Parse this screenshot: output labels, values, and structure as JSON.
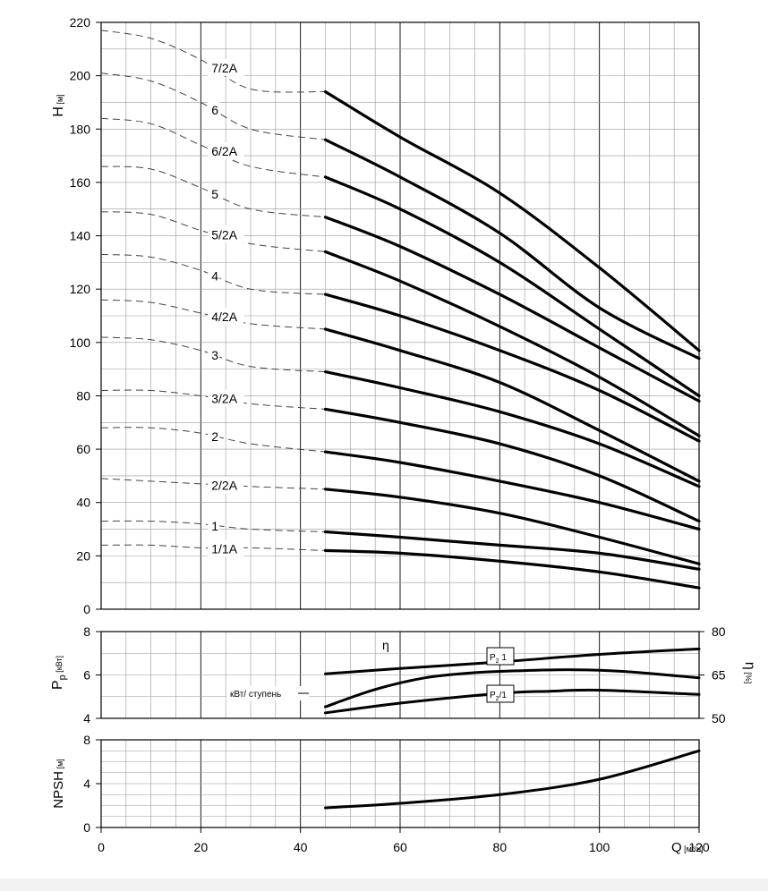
{
  "chart_data": [
    {
      "type": "line",
      "panel": "head",
      "ylabel_main": "H",
      "ylabel_unit": "[м]",
      "ylim": [
        0,
        220
      ],
      "yticks": [
        0,
        20,
        40,
        60,
        80,
        100,
        120,
        140,
        160,
        180,
        200,
        220
      ],
      "xlim": [
        0,
        120
      ],
      "grid": true,
      "series": [
        {
          "name": "7/2A",
          "dashed": {
            "x": [
              0,
              10,
              20,
              30,
              45
            ],
            "y": [
              217,
              214,
              206,
              195,
              194
            ]
          },
          "solid": {
            "x": [
              45,
              60,
              80,
              100,
              120
            ],
            "y": [
              194,
              177,
              156,
              128,
              97
            ]
          }
        },
        {
          "name": "6",
          "dashed": {
            "x": [
              0,
              10,
              20,
              30,
              45
            ],
            "y": [
              201,
              198,
              190,
              180,
              176
            ]
          },
          "solid": {
            "x": [
              45,
              60,
              80,
              100,
              120
            ],
            "y": [
              176,
              162,
              141,
              113,
              94
            ]
          }
        },
        {
          "name": "6/2A",
          "dashed": {
            "x": [
              0,
              10,
              20,
              30,
              45
            ],
            "y": [
              184,
              182,
              174,
              166,
              162
            ]
          },
          "solid": {
            "x": [
              45,
              60,
              80,
              100,
              120
            ],
            "y": [
              162,
              150,
              130,
              105,
              80
            ]
          }
        },
        {
          "name": "5",
          "dashed": {
            "x": [
              0,
              10,
              20,
              30,
              45
            ],
            "y": [
              166,
              165,
              158,
              150,
              147
            ]
          },
          "solid": {
            "x": [
              45,
              60,
              80,
              100,
              120
            ],
            "y": [
              147,
              136,
              118,
              98,
              78
            ]
          }
        },
        {
          "name": "5/2A",
          "dashed": {
            "x": [
              0,
              10,
              20,
              30,
              45
            ],
            "y": [
              149,
              148,
              142,
              137,
              134
            ]
          },
          "solid": {
            "x": [
              45,
              60,
              80,
              100,
              120
            ],
            "y": [
              134,
              123,
              106,
              87,
              65
            ]
          }
        },
        {
          "name": "4",
          "dashed": {
            "x": [
              0,
              10,
              20,
              30,
              45
            ],
            "y": [
              133,
              132,
              127,
              120,
              118
            ]
          },
          "solid": {
            "x": [
              45,
              60,
              80,
              100,
              120
            ],
            "y": [
              118,
              110,
              97,
              82,
              63
            ]
          }
        },
        {
          "name": "4/2A",
          "dashed": {
            "x": [
              0,
              10,
              20,
              30,
              45
            ],
            "y": [
              116,
              115,
              111,
              107,
              105
            ]
          },
          "solid": {
            "x": [
              45,
              60,
              80,
              100,
              120
            ],
            "y": [
              105,
              97,
              85,
              67,
              48
            ]
          }
        },
        {
          "name": "3",
          "dashed": {
            "x": [
              0,
              10,
              20,
              30,
              45
            ],
            "y": [
              102,
              101,
              97,
              91,
              89
            ]
          },
          "solid": {
            "x": [
              45,
              60,
              80,
              100,
              120
            ],
            "y": [
              89,
              83,
              74,
              62,
              46
            ]
          }
        },
        {
          "name": "3/2A",
          "dashed": {
            "x": [
              0,
              10,
              20,
              30,
              45
            ],
            "y": [
              82,
              82,
              80,
              77,
              75
            ]
          },
          "solid": {
            "x": [
              45,
              60,
              80,
              100,
              120
            ],
            "y": [
              75,
              70,
              62,
              50,
              33
            ]
          }
        },
        {
          "name": "2",
          "dashed": {
            "x": [
              0,
              10,
              20,
              30,
              45
            ],
            "y": [
              68,
              68,
              66,
              62,
              59
            ]
          },
          "solid": {
            "x": [
              45,
              60,
              80,
              100,
              120
            ],
            "y": [
              59,
              55,
              48,
              40,
              30
            ]
          }
        },
        {
          "name": "2/2A",
          "dashed": {
            "x": [
              0,
              10,
              20,
              30,
              45
            ],
            "y": [
              49,
              48,
              47,
              46,
              45
            ]
          },
          "solid": {
            "x": [
              45,
              60,
              80,
              100,
              120
            ],
            "y": [
              45,
              42,
              36,
              27,
              17
            ]
          }
        },
        {
          "name": "1",
          "dashed": {
            "x": [
              0,
              10,
              20,
              30,
              45
            ],
            "y": [
              33,
              33,
              32,
              30,
              29
            ]
          },
          "solid": {
            "x": [
              45,
              60,
              80,
              100,
              120
            ],
            "y": [
              29,
              27,
              24,
              21,
              15
            ]
          }
        },
        {
          "name": "1/1A",
          "dashed": {
            "x": [
              0,
              10,
              20,
              30,
              45
            ],
            "y": [
              24,
              24,
              23,
              23,
              22
            ]
          },
          "solid": {
            "x": [
              45,
              60,
              80,
              100,
              120
            ],
            "y": [
              22,
              21,
              18,
              14,
              8
            ]
          }
        }
      ]
    },
    {
      "type": "line",
      "panel": "power-efficiency",
      "ylabel_left_main": "P",
      "ylabel_left_sub": "p",
      "ylabel_left_unit": "[кВт]",
      "ylim_left": [
        4,
        8
      ],
      "yticks_left": [
        4,
        6,
        8
      ],
      "ylabel_right_main": "η",
      "ylabel_right_unit": "[%]",
      "ylim_right": [
        50,
        80
      ],
      "yticks_right": [
        50,
        65,
        80
      ],
      "xlim": [
        0,
        120
      ],
      "grid": true,
      "annotation_eta": "η",
      "annotation_unit": "кВт/ ступень",
      "label_p2_1": "P",
      "label_p2_1_sub": "2",
      "label_p2_1_tail": "1",
      "label_p2_2": "P",
      "label_p2_2_sub": "2",
      "label_p2_2_tail": "/1",
      "series": [
        {
          "name": "η",
          "axis": "right",
          "x": [
            45,
            55,
            65,
            75,
            85,
            95,
            105,
            120
          ],
          "y": [
            54,
            60,
            64,
            65.8,
            66.5,
            66.8,
            66.2,
            64.0
          ]
        },
        {
          "name": "P2 1",
          "axis": "left",
          "x": [
            45,
            60,
            80,
            100,
            120
          ],
          "y": [
            6.05,
            6.3,
            6.6,
            6.95,
            7.2
          ]
        },
        {
          "name": "P2/1",
          "axis": "left",
          "x": [
            45,
            60,
            80,
            90,
            100,
            120
          ],
          "y": [
            4.25,
            4.7,
            5.15,
            5.25,
            5.3,
            5.1
          ]
        }
      ]
    },
    {
      "type": "line",
      "panel": "npsh",
      "ylabel_main": "NPSH",
      "ylabel_unit": "[м]",
      "ylim": [
        0,
        8
      ],
      "yticks": [
        0,
        4,
        8
      ],
      "xlim": [
        0,
        120
      ],
      "xticks": [
        0,
        20,
        40,
        60,
        80,
        100,
        120
      ],
      "xlabel_main": "Q",
      "xlabel_unit": "[м³/ч]",
      "grid": true,
      "series": [
        {
          "name": "NPSH",
          "x": [
            45,
            60,
            80,
            100,
            120
          ],
          "y": [
            1.8,
            2.2,
            3.0,
            4.4,
            7.0
          ]
        }
      ]
    }
  ]
}
